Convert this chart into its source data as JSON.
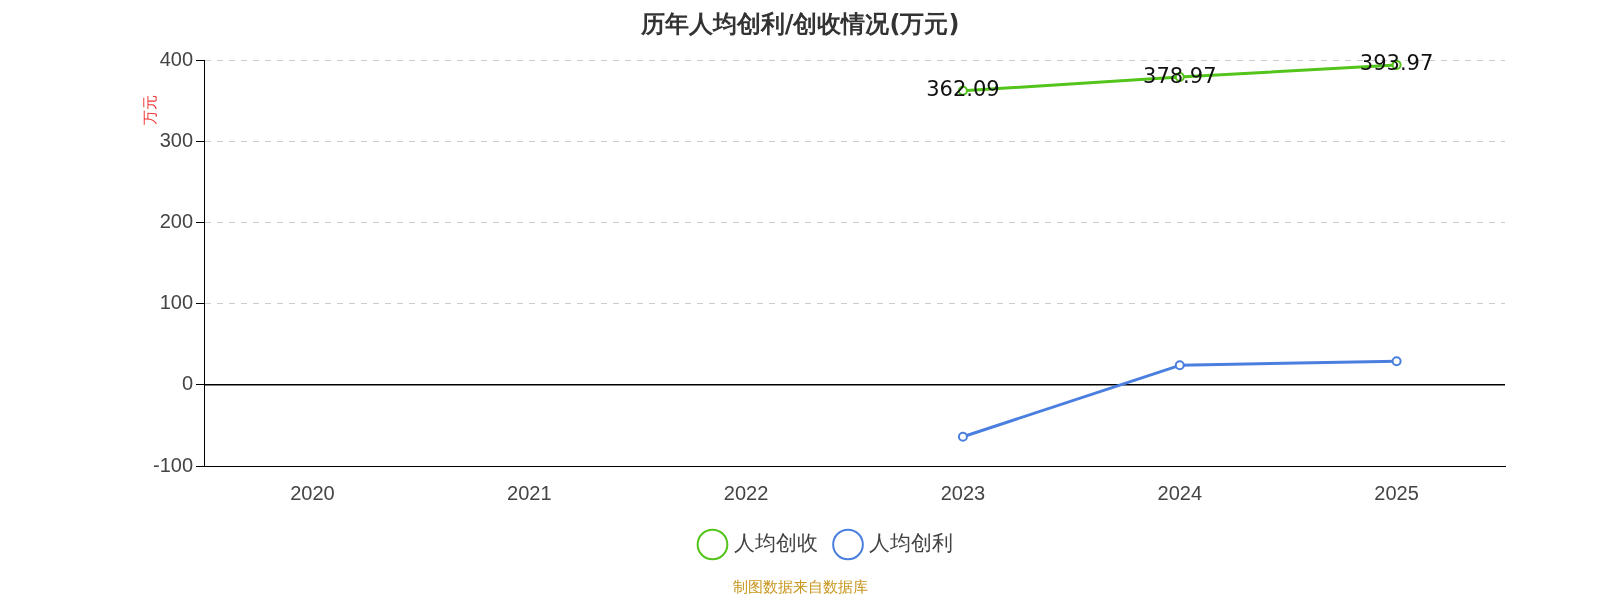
{
  "chart_data": {
    "type": "line",
    "title": "历年人均创利/创收情况(万元)",
    "ylabel": "万元",
    "categories": [
      "2020",
      "2021",
      "2022",
      "2023",
      "2024",
      "2025"
    ],
    "series": [
      {
        "name": "人均创收",
        "color": "#52c41a",
        "values": [
          null,
          null,
          null,
          362.09,
          378.97,
          393.97
        ],
        "value_labels": [
          null,
          null,
          null,
          "362.09",
          "378.97",
          "393.97"
        ]
      },
      {
        "name": "人均创利",
        "color": "#4a7fdf",
        "values": [
          null,
          null,
          null,
          -64,
          24,
          29
        ]
      }
    ],
    "ylim": [
      -100,
      400
    ],
    "yticks": [
      -100,
      0,
      100,
      200,
      300,
      400
    ],
    "grid": "y",
    "legend": "bottom",
    "marker": "circle",
    "line_style": "solid",
    "annotations": [
      "制图数据来自数据库"
    ]
  }
}
